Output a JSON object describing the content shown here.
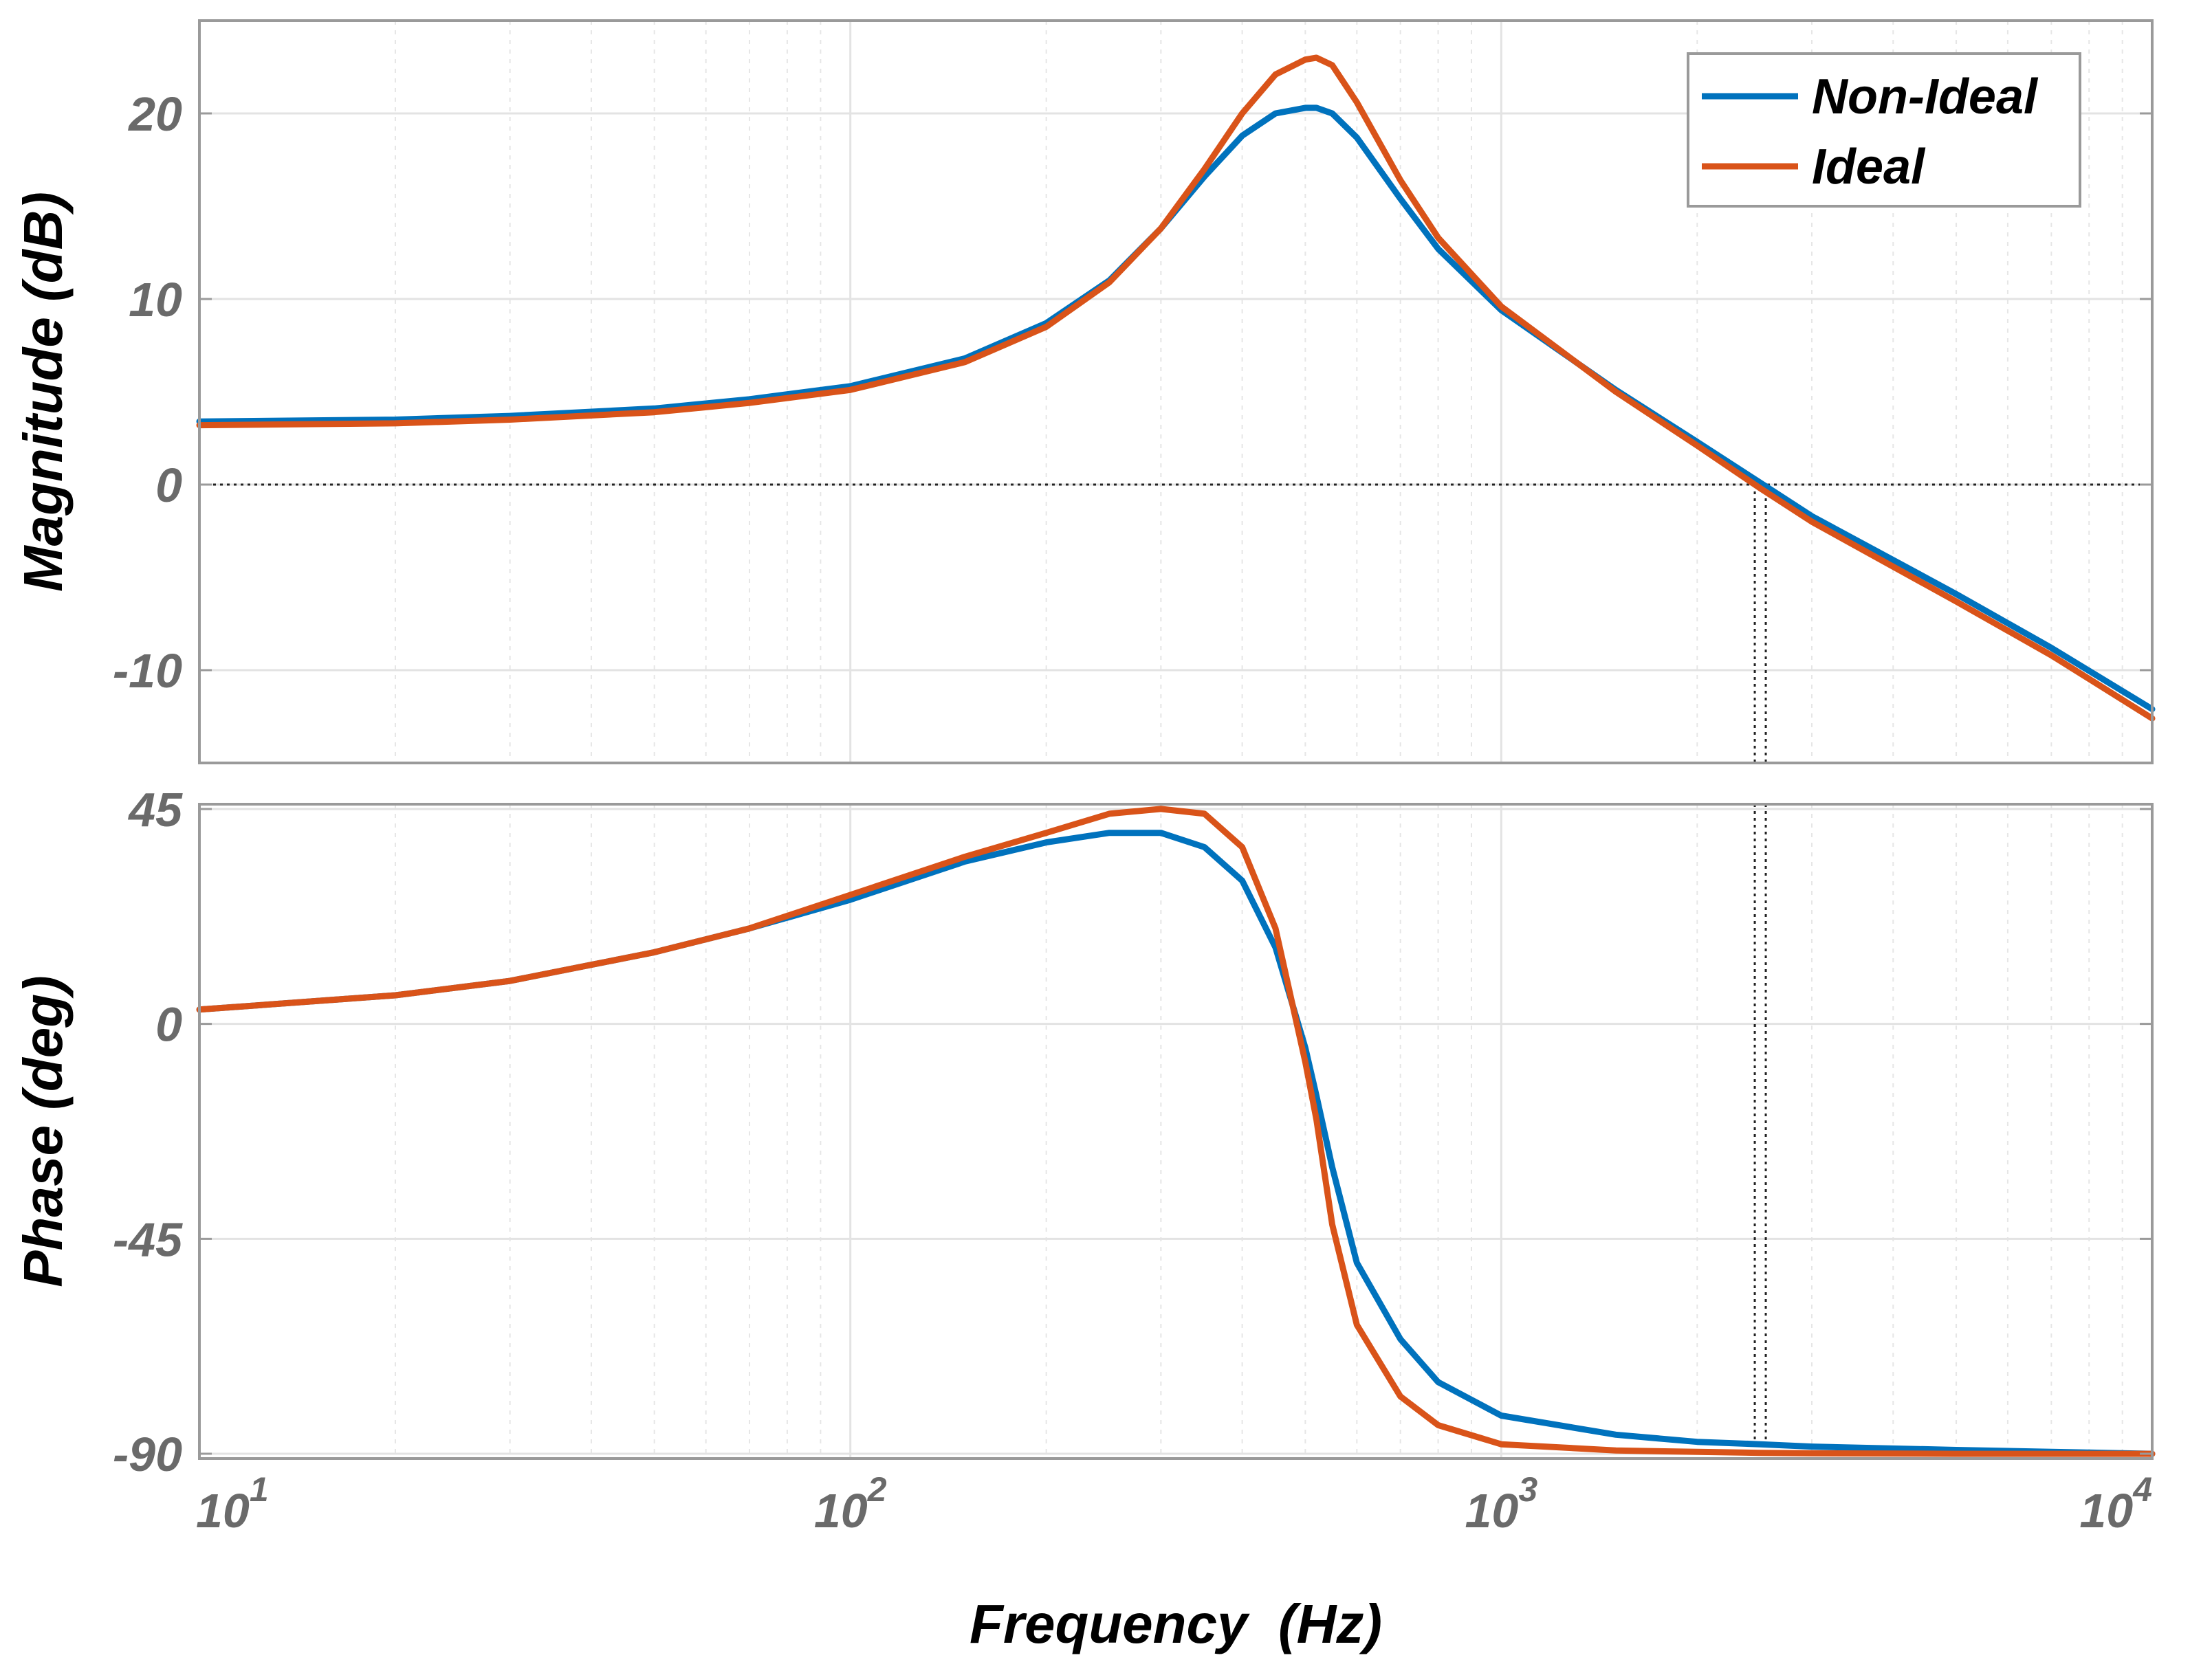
{
  "chart_data": [
    {
      "type": "line",
      "panel": "magnitude",
      "ylabel": "Magnitude (dB)",
      "xscale": "log",
      "xlim": [
        10,
        10000
      ],
      "ylim": [
        -15,
        25
      ],
      "yticks": [
        20,
        10,
        0,
        -10
      ],
      "ytick_labels": [
        "20",
        "10",
        "0",
        "-10"
      ],
      "grid": true,
      "legend": "top-right",
      "x": [
        10,
        20,
        30,
        50,
        70,
        100,
        150,
        200,
        250,
        300,
        350,
        400,
        450,
        500,
        520,
        550,
        600,
        700,
        800,
        1000,
        1500,
        2000,
        2500,
        3000,
        5000,
        7000,
        10000
      ],
      "series": [
        {
          "name": "Non-Ideal",
          "color": "#0072BD",
          "values": [
            3.4,
            3.5,
            3.7,
            4.1,
            4.6,
            5.3,
            6.8,
            8.7,
            11.0,
            13.8,
            16.6,
            18.8,
            20.0,
            20.3,
            20.3,
            20.0,
            18.7,
            15.4,
            12.7,
            9.4,
            5.1,
            2.3,
            0.1,
            -1.7,
            -5.9,
            -8.8,
            -12.1
          ]
        },
        {
          "name": "Ideal",
          "color": "#D95319",
          "values": [
            3.2,
            3.3,
            3.5,
            3.9,
            4.4,
            5.1,
            6.6,
            8.5,
            10.9,
            13.8,
            17.0,
            20.0,
            22.1,
            22.9,
            23.0,
            22.6,
            20.6,
            16.4,
            13.3,
            9.6,
            5.0,
            2.1,
            -0.2,
            -2.0,
            -6.3,
            -9.2,
            -12.6
          ]
        }
      ],
      "reference_lines": {
        "y0_dotted": true,
        "x_marker": 2500
      }
    },
    {
      "type": "line",
      "panel": "phase",
      "xlabel": "Frequency  (Hz)",
      "ylabel": "Phase (deg)",
      "xscale": "log",
      "xlim": [
        10,
        10000
      ],
      "ylim": [
        -91,
        46
      ],
      "yticks": [
        45,
        0,
        -45,
        -90
      ],
      "ytick_labels": [
        "45",
        "0",
        "-45",
        "-90"
      ],
      "xtick_labels": [
        {
          "base": "10",
          "exp": "1"
        },
        {
          "base": "10",
          "exp": "2"
        },
        {
          "base": "10",
          "exp": "3"
        },
        {
          "base": "10",
          "exp": "4"
        }
      ],
      "grid": true,
      "x": [
        10,
        20,
        30,
        50,
        70,
        100,
        150,
        200,
        250,
        300,
        350,
        400,
        450,
        500,
        520,
        550,
        600,
        700,
        800,
        1000,
        1500,
        2000,
        2500,
        3000,
        5000,
        7000,
        10000
      ],
      "series": [
        {
          "name": "Non-Ideal",
          "color": "#0072BD",
          "values": [
            3,
            6,
            9,
            15,
            20,
            26,
            34,
            38,
            40,
            40,
            37,
            30,
            16,
            -5,
            -15,
            -30,
            -50,
            -66,
            -75,
            -82,
            -86,
            -87.5,
            -88,
            -88.5,
            -89.2,
            -89.6,
            -90
          ]
        },
        {
          "name": "Ideal",
          "color": "#D95319",
          "values": [
            3,
            6,
            9,
            15,
            20,
            27,
            35,
            40,
            44,
            45,
            44,
            37,
            20,
            -8,
            -20,
            -42,
            -63,
            -78,
            -84,
            -88,
            -89.3,
            -89.6,
            -89.8,
            -89.9,
            -90,
            -90,
            -90
          ]
        }
      ],
      "reference_lines": {
        "x_marker": 2500
      }
    }
  ]
}
